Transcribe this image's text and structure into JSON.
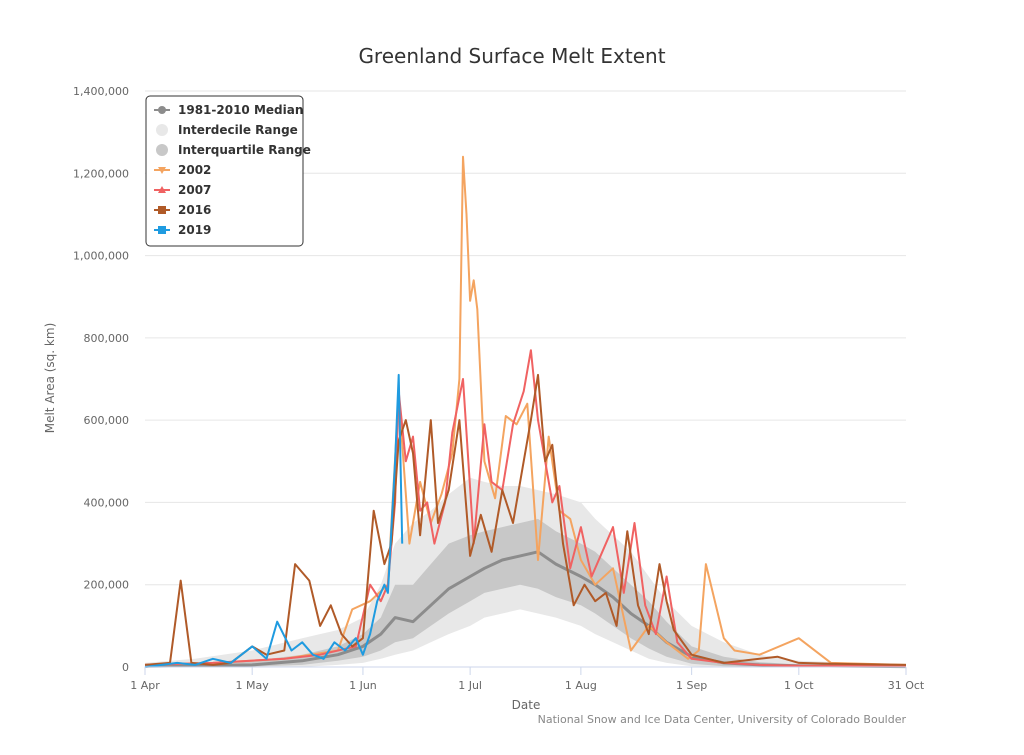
{
  "chart_data": {
    "type": "line",
    "title": "Greenland Surface Melt Extent",
    "xlabel": "Date",
    "ylabel": "Melt Area (sq. km)",
    "credits": "National Snow and Ice Data Center, University of Colorado Boulder",
    "x_range": [
      "2000-04-01",
      "2000-10-31"
    ],
    "ylim": [
      0,
      1400000
    ],
    "y_ticks": [
      0,
      200000,
      400000,
      600000,
      800000,
      1000000,
      1200000,
      1400000
    ],
    "y_tick_labels": [
      "0",
      "200,000",
      "400,000",
      "600,000",
      "800,000",
      "1,000,000",
      "1,200,000",
      "1,400,000"
    ],
    "x_ticks": [
      "2000-04-01",
      "2000-05-01",
      "2000-06-01",
      "2000-07-01",
      "2000-08-01",
      "2000-09-01",
      "2000-10-01",
      "2000-10-31"
    ],
    "x_tick_labels": [
      "1 Apr",
      "1 May",
      "1 Jun",
      "1 Jul",
      "1 Aug",
      "1 Sep",
      "1 Oct",
      "31 Oct"
    ],
    "grid": "horizontal",
    "legend_position": "top-left",
    "legend": [
      {
        "label": "1981-2010 Median",
        "color": "#8c8c8c",
        "marker": "circle-line"
      },
      {
        "label": "Interdecile Range",
        "color": "#e8e8e8",
        "marker": "circle"
      },
      {
        "label": "Interquartile Range",
        "color": "#c8c8c8",
        "marker": "circle"
      },
      {
        "label": "2002",
        "color": "#f4a460",
        "marker": "triangle-down-line"
      },
      {
        "label": "2007",
        "color": "#f06262",
        "marker": "triangle-line"
      },
      {
        "label": "2016",
        "color": "#b05a28",
        "marker": "square-line"
      },
      {
        "label": "2019",
        "color": "#1f9be0",
        "marker": "square-line"
      }
    ],
    "median": {
      "name": "1981-2010 Median",
      "color": "#8c8c8c",
      "x": [
        "2000-04-01",
        "2000-04-15",
        "2000-05-01",
        "2000-05-15",
        "2000-05-25",
        "2000-06-01",
        "2000-06-06",
        "2000-06-10",
        "2000-06-15",
        "2000-06-20",
        "2000-06-25",
        "2000-07-01",
        "2000-07-05",
        "2000-07-10",
        "2000-07-15",
        "2000-07-20",
        "2000-07-25",
        "2000-08-01",
        "2000-08-05",
        "2000-08-10",
        "2000-08-15",
        "2000-08-20",
        "2000-08-25",
        "2000-09-01",
        "2000-09-10",
        "2000-09-20",
        "2000-10-01",
        "2000-10-31"
      ],
      "y": [
        2000,
        3000,
        5000,
        15000,
        30000,
        50000,
        80000,
        120000,
        110000,
        150000,
        190000,
        220000,
        240000,
        260000,
        270000,
        280000,
        250000,
        220000,
        200000,
        170000,
        130000,
        100000,
        60000,
        25000,
        10000,
        5000,
        3000,
        1000
      ]
    },
    "interdecile": {
      "name": "Interdecile Range",
      "color": "#e8e8e8",
      "x": [
        "2000-04-01",
        "2000-04-15",
        "2000-05-01",
        "2000-05-15",
        "2000-05-25",
        "2000-06-01",
        "2000-06-06",
        "2000-06-10",
        "2000-06-15",
        "2000-06-20",
        "2000-06-25",
        "2000-07-01",
        "2000-07-05",
        "2000-07-10",
        "2000-07-15",
        "2000-07-20",
        "2000-07-25",
        "2000-08-01",
        "2000-08-05",
        "2000-08-10",
        "2000-08-15",
        "2000-08-20",
        "2000-08-25",
        "2000-09-01",
        "2000-09-10",
        "2000-09-20",
        "2000-10-01",
        "2000-10-31"
      ],
      "low": [
        0,
        0,
        0,
        0,
        5000,
        10000,
        20000,
        30000,
        40000,
        60000,
        80000,
        100000,
        120000,
        130000,
        140000,
        130000,
        120000,
        100000,
        80000,
        60000,
        40000,
        20000,
        10000,
        2000,
        0,
        0,
        0,
        0
      ],
      "high": [
        10000,
        20000,
        40000,
        70000,
        90000,
        120000,
        200000,
        300000,
        350000,
        380000,
        420000,
        460000,
        450000,
        440000,
        440000,
        430000,
        420000,
        400000,
        360000,
        320000,
        280000,
        220000,
        160000,
        100000,
        60000,
        30000,
        15000,
        5000
      ]
    },
    "interquartile": {
      "name": "Interquartile Range",
      "color": "#c8c8c8",
      "x": [
        "2000-04-01",
        "2000-04-15",
        "2000-05-01",
        "2000-05-15",
        "2000-05-25",
        "2000-06-01",
        "2000-06-06",
        "2000-06-10",
        "2000-06-15",
        "2000-06-20",
        "2000-06-25",
        "2000-07-01",
        "2000-07-05",
        "2000-07-10",
        "2000-07-15",
        "2000-07-20",
        "2000-07-25",
        "2000-08-01",
        "2000-08-05",
        "2000-08-10",
        "2000-08-15",
        "2000-08-20",
        "2000-08-25",
        "2000-09-01",
        "2000-09-10",
        "2000-09-20",
        "2000-10-01",
        "2000-10-31"
      ],
      "low": [
        0,
        0,
        1000,
        5000,
        15000,
        25000,
        40000,
        60000,
        70000,
        100000,
        130000,
        160000,
        180000,
        190000,
        200000,
        190000,
        170000,
        150000,
        130000,
        100000,
        70000,
        45000,
        25000,
        8000,
        2000,
        1000,
        0,
        0
      ],
      "high": [
        5000,
        8000,
        15000,
        30000,
        50000,
        80000,
        120000,
        200000,
        200000,
        250000,
        300000,
        320000,
        330000,
        340000,
        350000,
        360000,
        330000,
        300000,
        280000,
        240000,
        200000,
        160000,
        110000,
        50000,
        25000,
        12000,
        6000,
        2000
      ]
    },
    "series": [
      {
        "name": "2002",
        "color": "#f4a460",
        "x": [
          "2000-04-01",
          "2000-04-20",
          "2000-05-10",
          "2000-05-25",
          "2000-05-29",
          "2000-06-03",
          "2000-06-08",
          "2000-06-11",
          "2000-06-14",
          "2000-06-17",
          "2000-06-20",
          "2000-06-23",
          "2000-06-26",
          "2000-06-28",
          "2000-06-29",
          "2000-06-30",
          "2000-07-01",
          "2000-07-02",
          "2000-07-03",
          "2000-07-05",
          "2000-07-08",
          "2000-07-11",
          "2000-07-14",
          "2000-07-17",
          "2000-07-20",
          "2000-07-23",
          "2000-07-26",
          "2000-07-29",
          "2000-08-01",
          "2000-08-05",
          "2000-08-10",
          "2000-08-15",
          "2000-08-20",
          "2000-08-25",
          "2000-08-31",
          "2000-09-03",
          "2000-09-05",
          "2000-09-10",
          "2000-09-13",
          "2000-09-20",
          "2000-10-01",
          "2000-10-10",
          "2000-10-31"
        ],
        "y": [
          5000,
          10000,
          20000,
          40000,
          140000,
          160000,
          200000,
          660000,
          300000,
          450000,
          350000,
          420000,
          520000,
          700000,
          1240000,
          1100000,
          890000,
          940000,
          870000,
          500000,
          410000,
          610000,
          590000,
          640000,
          260000,
          560000,
          380000,
          360000,
          260000,
          200000,
          240000,
          40000,
          100000,
          60000,
          20000,
          40000,
          250000,
          70000,
          40000,
          30000,
          70000,
          10000,
          5000
        ]
      },
      {
        "name": "2007",
        "color": "#f06262",
        "x": [
          "2000-04-01",
          "2000-04-20",
          "2000-05-10",
          "2000-05-20",
          "2000-05-30",
          "2000-06-03",
          "2000-06-06",
          "2000-06-08",
          "2000-06-10",
          "2000-06-11",
          "2000-06-13",
          "2000-06-15",
          "2000-06-17",
          "2000-06-19",
          "2000-06-21",
          "2000-06-24",
          "2000-06-26",
          "2000-06-29",
          "2000-07-02",
          "2000-07-05",
          "2000-07-07",
          "2000-07-10",
          "2000-07-13",
          "2000-07-16",
          "2000-07-18",
          "2000-07-20",
          "2000-07-22",
          "2000-07-24",
          "2000-07-26",
          "2000-07-29",
          "2000-08-01",
          "2000-08-04",
          "2000-08-07",
          "2000-08-10",
          "2000-08-13",
          "2000-08-16",
          "2000-08-19",
          "2000-08-22",
          "2000-08-25",
          "2000-08-28",
          "2000-09-01",
          "2000-09-10",
          "2000-09-20",
          "2000-10-01",
          "2000-10-31"
        ],
        "y": [
          5000,
          10000,
          20000,
          30000,
          50000,
          200000,
          160000,
          200000,
          400000,
          670000,
          500000,
          560000,
          380000,
          400000,
          300000,
          400000,
          570000,
          700000,
          300000,
          590000,
          450000,
          430000,
          590000,
          670000,
          770000,
          600000,
          500000,
          400000,
          440000,
          240000,
          340000,
          220000,
          280000,
          340000,
          180000,
          350000,
          150000,
          80000,
          220000,
          60000,
          20000,
          10000,
          5000,
          3000,
          2000
        ]
      },
      {
        "name": "2016",
        "color": "#b05a28",
        "x": [
          "2000-04-01",
          "2000-04-08",
          "2000-04-11",
          "2000-04-14",
          "2000-04-20",
          "2000-04-25",
          "2000-05-01",
          "2000-05-05",
          "2000-05-10",
          "2000-05-13",
          "2000-05-15",
          "2000-05-17",
          "2000-05-20",
          "2000-05-23",
          "2000-05-26",
          "2000-05-29",
          "2000-06-01",
          "2000-06-04",
          "2000-06-07",
          "2000-06-09",
          "2000-06-11",
          "2000-06-13",
          "2000-06-15",
          "2000-06-17",
          "2000-06-20",
          "2000-06-22",
          "2000-06-25",
          "2000-06-28",
          "2000-07-01",
          "2000-07-04",
          "2000-07-07",
          "2000-07-10",
          "2000-07-13",
          "2000-07-16",
          "2000-07-18",
          "2000-07-20",
          "2000-07-22",
          "2000-07-24",
          "2000-07-27",
          "2000-07-30",
          "2000-08-02",
          "2000-08-05",
          "2000-08-08",
          "2000-08-11",
          "2000-08-14",
          "2000-08-17",
          "2000-08-20",
          "2000-08-23",
          "2000-08-25",
          "2000-08-27",
          "2000-09-01",
          "2000-09-10",
          "2000-09-20",
          "2000-09-25",
          "2000-10-01",
          "2000-10-10",
          "2000-10-31"
        ],
        "y": [
          5000,
          10000,
          210000,
          10000,
          5000,
          10000,
          50000,
          30000,
          40000,
          250000,
          230000,
          210000,
          100000,
          150000,
          80000,
          50000,
          70000,
          380000,
          250000,
          300000,
          550000,
          600000,
          520000,
          320000,
          600000,
          350000,
          430000,
          600000,
          270000,
          370000,
          280000,
          430000,
          350000,
          500000,
          600000,
          710000,
          500000,
          540000,
          300000,
          150000,
          200000,
          160000,
          180000,
          100000,
          330000,
          150000,
          80000,
          250000,
          160000,
          90000,
          30000,
          10000,
          20000,
          25000,
          10000,
          8000,
          5000
        ]
      },
      {
        "name": "2019",
        "color": "#1f9be0",
        "x": [
          "2000-04-01",
          "2000-04-10",
          "2000-04-15",
          "2000-04-20",
          "2000-04-25",
          "2000-05-01",
          "2000-05-05",
          "2000-05-08",
          "2000-05-12",
          "2000-05-15",
          "2000-05-18",
          "2000-05-21",
          "2000-05-24",
          "2000-05-27",
          "2000-05-30",
          "2000-06-01",
          "2000-06-03",
          "2000-06-05",
          "2000-06-07",
          "2000-06-08",
          "2000-06-10",
          "2000-06-11",
          "2000-06-12"
        ],
        "y": [
          0,
          10000,
          5000,
          20000,
          10000,
          50000,
          20000,
          110000,
          40000,
          60000,
          30000,
          20000,
          60000,
          40000,
          70000,
          30000,
          80000,
          160000,
          200000,
          180000,
          500000,
          710000,
          300000
        ]
      }
    ]
  }
}
